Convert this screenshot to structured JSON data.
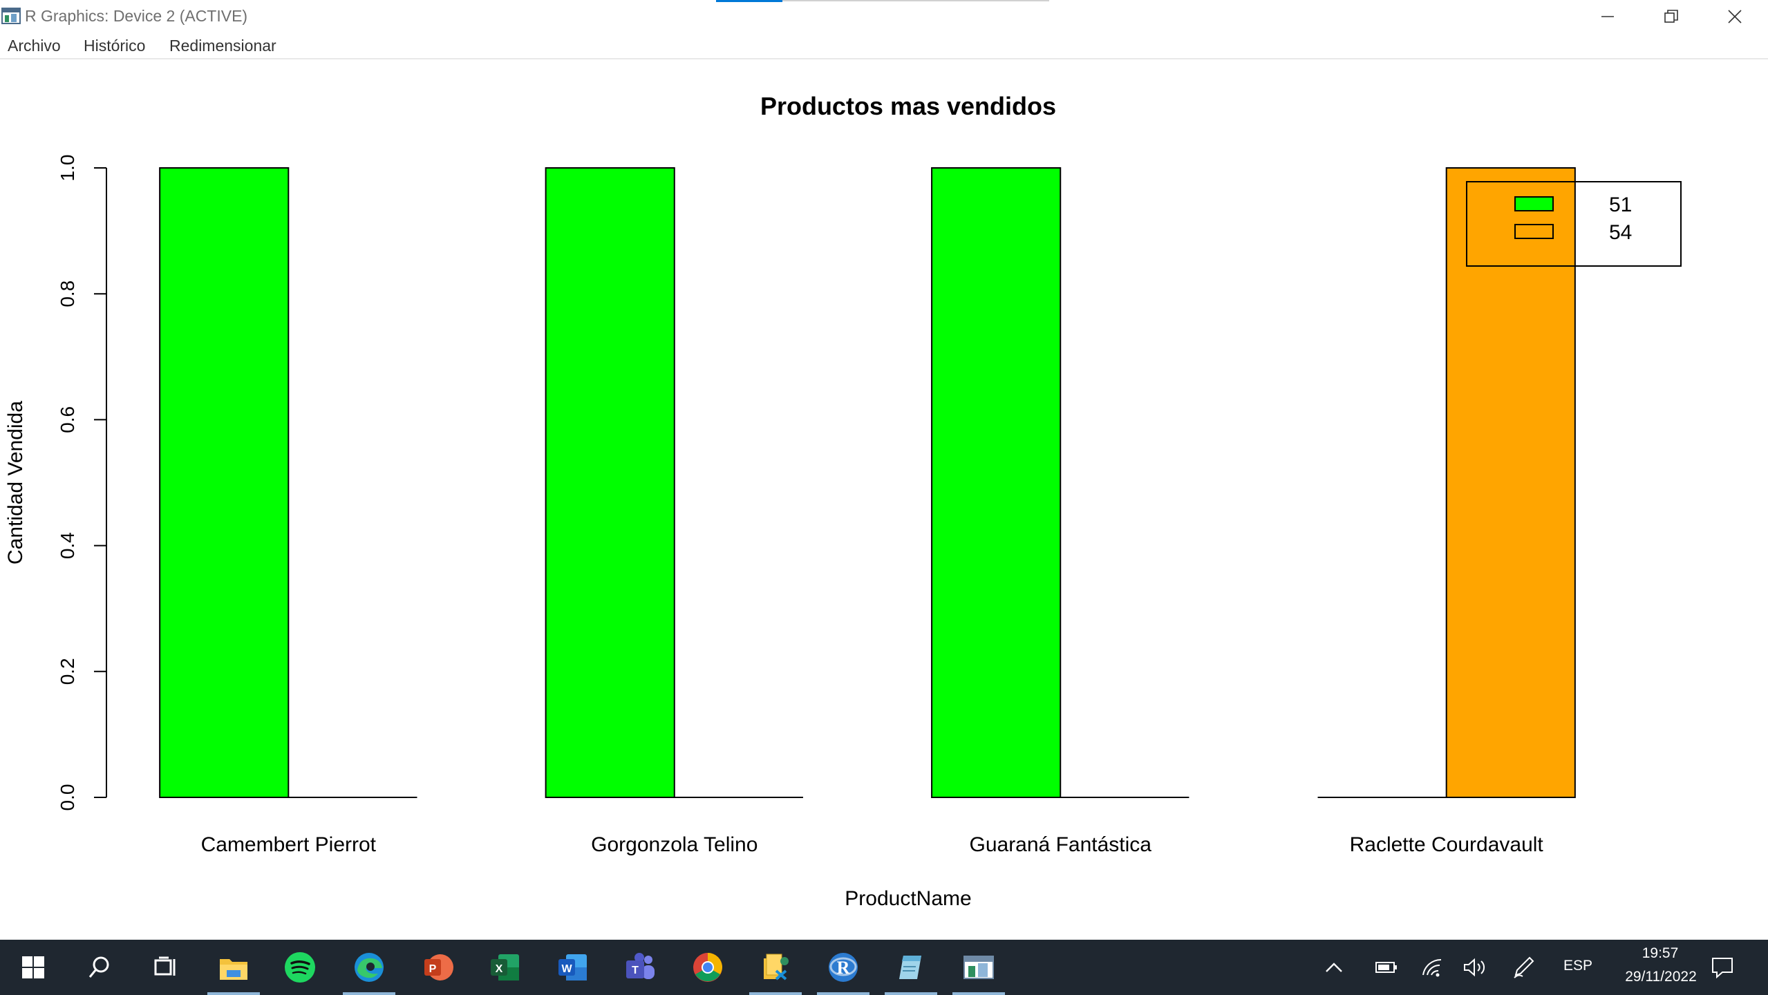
{
  "window": {
    "title": "R Graphics: Device 2 (ACTIVE)",
    "controls": [
      "minimize-icon",
      "restore-icon",
      "close-icon"
    ]
  },
  "menu": {
    "items": [
      "Archivo",
      "Histórico",
      "Redimensionar"
    ]
  },
  "chart_data": {
    "type": "bar",
    "title": "Productos mas vendidos",
    "xlabel": "ProductName",
    "ylabel": "Cantidad Vendida",
    "categories": [
      "Camembert Pierrot",
      "Gorgonzola Telino",
      "Guaraná Fantástica",
      "Raclette Courdavault"
    ],
    "series": [
      {
        "name": "51",
        "color": "#00ff00",
        "values": [
          1,
          1,
          1,
          0
        ]
      },
      {
        "name": "54",
        "color": "#ffa500",
        "values": [
          0,
          0,
          0,
          1
        ]
      }
    ],
    "ylim": [
      0,
      1
    ],
    "yticks": [
      "0.0",
      "0.2",
      "0.4",
      "0.6",
      "0.8",
      "1.0"
    ],
    "grid": false,
    "legend": "top-right",
    "barmode": "grouped (side by side)"
  },
  "taskbar": {
    "apps": [
      "windows-start-icon",
      "search-icon",
      "task-view-icon",
      "file-explorer-icon",
      "spotify-icon",
      "edge-icon",
      "powerpoint-icon",
      "excel-icon",
      "word-icon",
      "teams-icon",
      "chrome-icon",
      "database-tool-icon",
      "r-icon",
      "notepad-icon",
      "r-graphics-icon"
    ],
    "tray": {
      "language": "ESP",
      "time": "19:57",
      "date": "29/11/2022"
    }
  }
}
